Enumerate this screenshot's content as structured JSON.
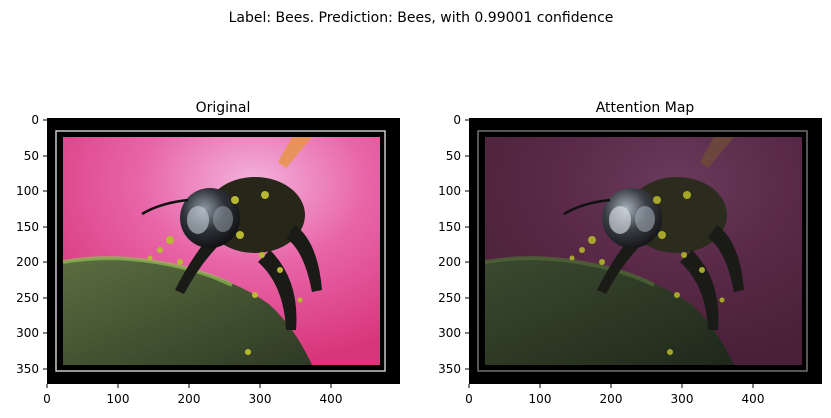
{
  "figure": {
    "suptitle": "Label: Bees. Prediction: Bees, with 0.99001 confidence"
  },
  "panels": [
    {
      "title": "Original",
      "xticks": [
        "0",
        "100",
        "200",
        "300",
        "400"
      ],
      "yticks": [
        "0",
        "50",
        "100",
        "150",
        "200",
        "250",
        "300",
        "350"
      ],
      "xlim": [
        0,
        490
      ],
      "ylim": [
        375,
        0
      ]
    },
    {
      "title": "Attention Map",
      "xticks": [
        "0",
        "100",
        "200",
        "300",
        "400"
      ],
      "yticks": [
        "0",
        "50",
        "100",
        "150",
        "200",
        "250",
        "300",
        "350"
      ],
      "xlim": [
        0,
        490
      ],
      "ylim": [
        375,
        0
      ]
    }
  ],
  "image": {
    "subject": "bee on green leaf with pink flower background",
    "colors": {
      "frame": "#000000",
      "inner_border": "#d8d8d8",
      "pink": "#e0447e",
      "pink_light": "#f3b3dc",
      "orange_streak": "#e8944a",
      "leaf": "#3e4a2e",
      "leaf_edge": "#7fae4a",
      "bee_body": "#1a1a16",
      "pollen": "#b8b832"
    }
  }
}
